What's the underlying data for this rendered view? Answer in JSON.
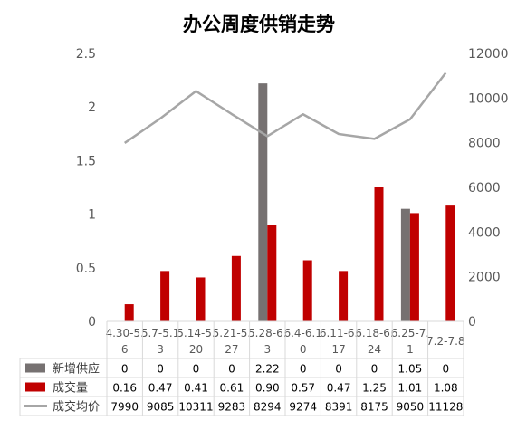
{
  "chart_data": {
    "type": "bar",
    "title": "办公周度供销走势",
    "categories": [
      "4.30-5.6",
      "5.7-5.13",
      "5.14-5.20",
      "5.21-5.27",
      "5.28-6.3",
      "6.4-6.10",
      "6.11-6.17",
      "6.18-6.24",
      "6.25-7.1",
      "7.2-7.8"
    ],
    "category_lines": [
      [
        "4.30-5.",
        "6"
      ],
      [
        "5.7-5.1",
        "3"
      ],
      [
        "5.14-5.",
        "20"
      ],
      [
        "5.21-5.",
        "27"
      ],
      [
        "5.28-6.",
        "3"
      ],
      [
        "6.4-6.1",
        "0"
      ],
      [
        "6.11-6.",
        "17"
      ],
      [
        "6.18-6.",
        "24"
      ],
      [
        "6.25-7.",
        "1"
      ],
      [
        "7.2-7.8",
        ""
      ]
    ],
    "ylim_left": [
      0,
      2.5
    ],
    "yticks_left": [
      "0",
      "0.5",
      "1",
      "1.5",
      "2",
      "2.5"
    ],
    "ylim_right": [
      0,
      12000
    ],
    "yticks_right": [
      "0",
      "2000",
      "4000",
      "6000",
      "8000",
      "10000",
      "12000"
    ],
    "grid": false,
    "series": [
      {
        "name": "新增供应",
        "type": "bar",
        "axis": "left",
        "color": "#767171",
        "values": [
          0,
          0,
          0,
          0,
          2.22,
          0,
          0,
          0,
          1.05,
          0
        ],
        "labels": [
          "0",
          "0",
          "0",
          "0",
          "2.22",
          "0",
          "0",
          "0",
          "1.05",
          "0"
        ]
      },
      {
        "name": "成交量",
        "type": "bar",
        "axis": "left",
        "color": "#c00000",
        "values": [
          0.16,
          0.47,
          0.41,
          0.61,
          0.9,
          0.57,
          0.47,
          1.25,
          1.01,
          1.08
        ],
        "labels": [
          "0.16",
          "0.47",
          "0.41",
          "0.61",
          "0.90",
          "0.57",
          "0.47",
          "1.25",
          "1.01",
          "1.08"
        ]
      },
      {
        "name": "成交均价",
        "type": "line",
        "axis": "right",
        "color": "#a6a6a6",
        "values": [
          7990,
          9085,
          10311,
          9283,
          8294,
          9274,
          8391,
          8175,
          9050,
          11128
        ],
        "labels": [
          "7990",
          "9085",
          "10311",
          "9283",
          "8294",
          "9274",
          "8391",
          "8175",
          "9050",
          "11128"
        ]
      }
    ]
  }
}
